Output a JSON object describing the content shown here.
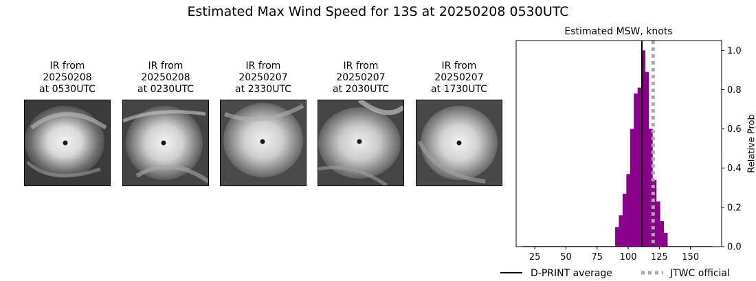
{
  "figure": {
    "suptitle": "Estimated Max Wind Speed for 13S at 20250208 0530UTC"
  },
  "ir_panels": [
    {
      "line1": "IR from",
      "line2": "20250208",
      "line3": "at 0530UTC"
    },
    {
      "line1": "IR from",
      "line2": "20250208",
      "line3": "at 0230UTC"
    },
    {
      "line1": "IR from",
      "line2": "20250207",
      "line3": "at 2330UTC"
    },
    {
      "line1": "IR from",
      "line2": "20250207",
      "line3": "at 2030UTC"
    },
    {
      "line1": "IR from",
      "line2": "20250207",
      "line3": "at 1730UTC"
    }
  ],
  "chart_data": {
    "type": "bar",
    "title": "Estimated MSW, knots",
    "xlabel": "",
    "ylabel": "Relative Prob",
    "xlim": [
      10,
      175
    ],
    "ylim": [
      0,
      1.05
    ],
    "xticks": [
      25,
      50,
      75,
      100,
      125,
      150
    ],
    "yticks": [
      0.0,
      0.2,
      0.4,
      0.6,
      0.8,
      1.0
    ],
    "ytick_labels": [
      "0.0",
      "0.2",
      "0.4",
      "0.6",
      "0.8",
      "1.0"
    ],
    "y_axis_side": "right",
    "bin_width": 3,
    "bar_color": "#8b008b",
    "bins": [
      {
        "x": 16,
        "y": 0.003
      },
      {
        "x": 19,
        "y": 0.003
      },
      {
        "x": 22,
        "y": 0.003
      },
      {
        "x": 25,
        "y": 0.003
      },
      {
        "x": 28,
        "y": 0.003
      },
      {
        "x": 31,
        "y": 0.003
      },
      {
        "x": 34,
        "y": 0.003
      },
      {
        "x": 37,
        "y": 0.003
      },
      {
        "x": 40,
        "y": 0.003
      },
      {
        "x": 43,
        "y": 0.003
      },
      {
        "x": 46,
        "y": 0.003
      },
      {
        "x": 49,
        "y": 0.003
      },
      {
        "x": 52,
        "y": 0.003
      },
      {
        "x": 55,
        "y": 0.003
      },
      {
        "x": 58,
        "y": 0.003
      },
      {
        "x": 61,
        "y": 0.003
      },
      {
        "x": 64,
        "y": 0.003
      },
      {
        "x": 67,
        "y": 0.003
      },
      {
        "x": 70,
        "y": 0.003
      },
      {
        "x": 73,
        "y": 0.003
      },
      {
        "x": 76,
        "y": 0.003
      },
      {
        "x": 79,
        "y": 0.003
      },
      {
        "x": 82,
        "y": 0.003
      },
      {
        "x": 85,
        "y": 0.003
      },
      {
        "x": 88,
        "y": 0.003
      },
      {
        "x": 91,
        "y": 0.1
      },
      {
        "x": 94,
        "y": 0.16
      },
      {
        "x": 97,
        "y": 0.27
      },
      {
        "x": 100,
        "y": 0.37
      },
      {
        "x": 103,
        "y": 0.6
      },
      {
        "x": 106,
        "y": 0.78
      },
      {
        "x": 109,
        "y": 0.81
      },
      {
        "x": 112,
        "y": 1.0
      },
      {
        "x": 115,
        "y": 0.89
      },
      {
        "x": 118,
        "y": 0.6
      },
      {
        "x": 121,
        "y": 0.34
      },
      {
        "x": 124,
        "y": 0.23
      },
      {
        "x": 127,
        "y": 0.13
      },
      {
        "x": 130,
        "y": 0.07
      },
      {
        "x": 133,
        "y": 0.003
      },
      {
        "x": 136,
        "y": 0.003
      },
      {
        "x": 139,
        "y": 0.003
      },
      {
        "x": 142,
        "y": 0.003
      },
      {
        "x": 145,
        "y": 0.003
      },
      {
        "x": 148,
        "y": 0.003
      },
      {
        "x": 151,
        "y": 0.003
      },
      {
        "x": 154,
        "y": 0.003
      },
      {
        "x": 157,
        "y": 0.003
      },
      {
        "x": 160,
        "y": 0.003
      },
      {
        "x": 163,
        "y": 0.003
      },
      {
        "x": 166,
        "y": 0.003
      }
    ],
    "lines": [
      {
        "name": "D-PRINT average",
        "x": 111,
        "color": "#000000",
        "style": "solid"
      },
      {
        "name": "JTWC official",
        "x": 120,
        "color": "#a9a9a9",
        "style": "dotted"
      }
    ],
    "legend": {
      "placement": "bottom"
    }
  }
}
